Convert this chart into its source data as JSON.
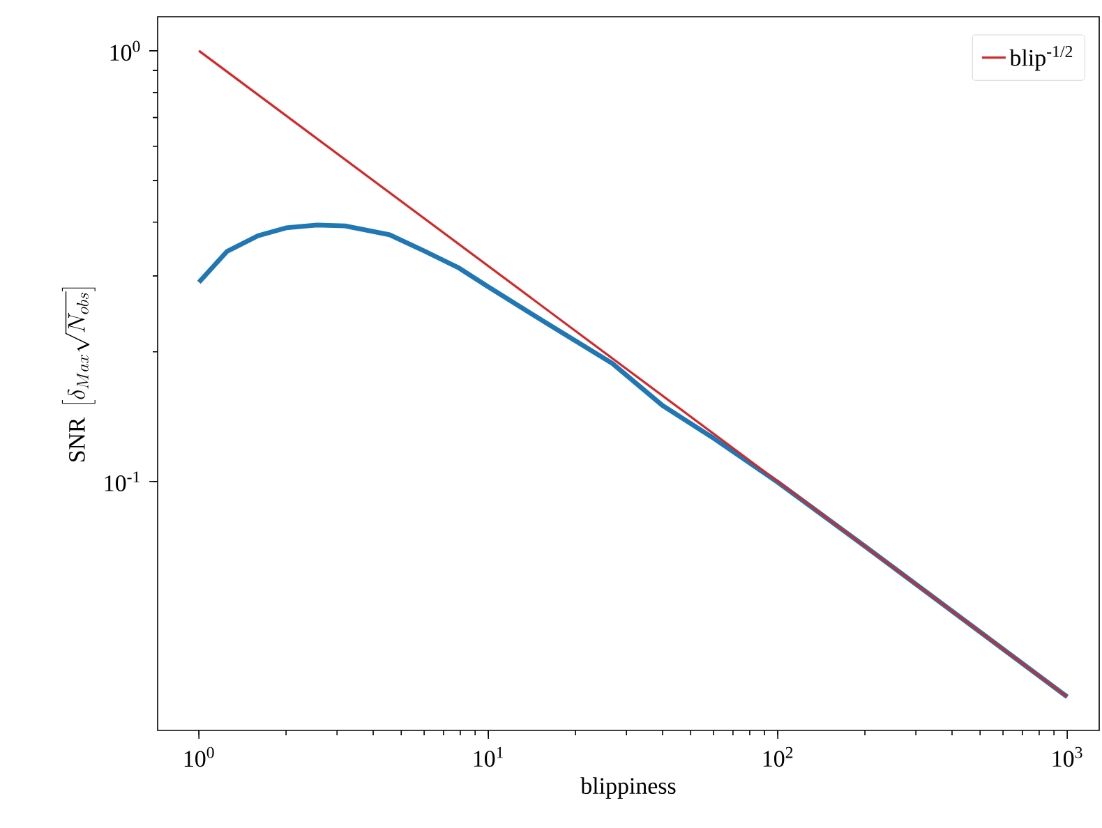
{
  "chart_data": {
    "type": "line",
    "xlabel": "blippiness",
    "ylabel": "\\mathrm{SNR}\\ \\left[\\delta_{Max}\\sqrt{N_{obs}}\\right]",
    "log": "xy",
    "grid": false,
    "legend": "top right",
    "marker": "none",
    "line_style": "solid",
    "xlim": [
      0.72,
      1290
    ],
    "ylim": [
      0.0264,
      1.2
    ],
    "xticks": [
      {
        "value": 1,
        "label": "10$^{0}$"
      },
      {
        "value": 10,
        "label": "10$^{1}$"
      },
      {
        "value": 100,
        "label": "10$^{2}$"
      },
      {
        "value": 1000,
        "label": "10$^{3}$"
      }
    ],
    "yticks": [
      {
        "value": 0.1,
        "label": "10$^{-1}$"
      },
      {
        "value": 1,
        "label": "10$^{0}$"
      }
    ],
    "series": [
      {
        "color": "#1f77b4",
        "x": [
          1,
          1.25,
          1.6,
          2,
          2.56,
          3.2,
          4.56,
          6,
          7.92,
          10,
          16.4,
          26.8,
          40,
          60,
          100,
          200,
          500,
          1000
        ],
        "values": [
          0.29,
          0.342,
          0.372,
          0.388,
          0.394,
          0.392,
          0.374,
          0.343,
          0.313,
          0.283,
          0.23,
          0.188,
          0.15,
          0.126,
          0.0995,
          0.0707,
          0.0447,
          0.0316
        ]
      },
      {
        "name": "blip$^{-1/2}$",
        "color": "#d62728",
        "x": [
          1,
          1000
        ],
        "values": [
          1,
          0.0316
        ]
      }
    ]
  }
}
